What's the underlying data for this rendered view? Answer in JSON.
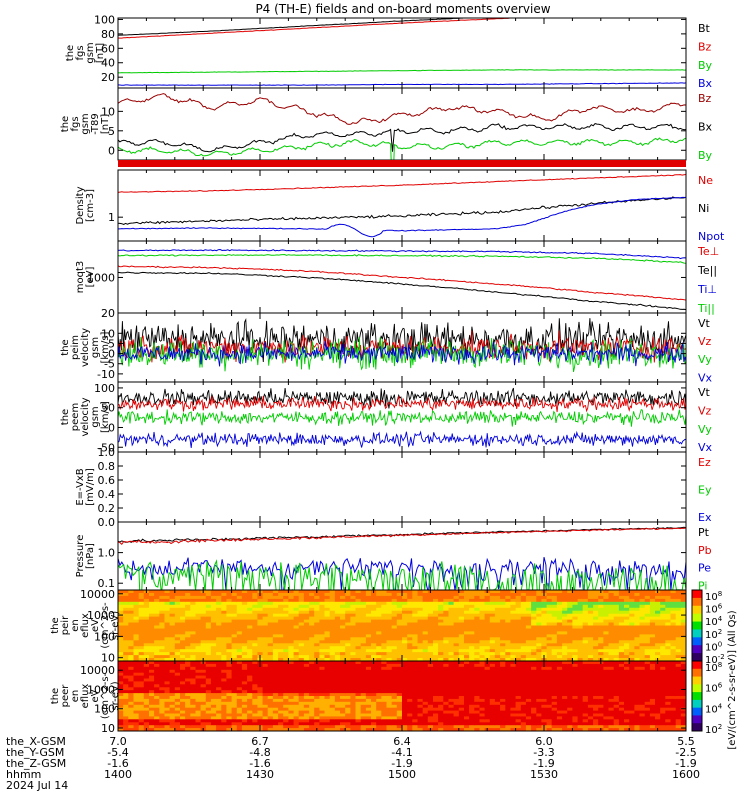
{
  "title": "P4 (TH-E) fields and on-board moments overview",
  "colors": {
    "black": "#000000",
    "red": "#e00000",
    "green": "#00cc00",
    "blue": "#0000dd",
    "darkred": "#990000"
  },
  "chart_data": [
    {
      "type": "line",
      "id": "fgs_gsm",
      "ylabel": [
        "the",
        "fgs",
        "gsm",
        "[nT]"
      ],
      "yticks": [
        "100",
        "80",
        "60",
        "40",
        "20"
      ],
      "ylim": [
        5,
        102
      ],
      "series": [
        {
          "name": "Bt",
          "color": "#000000",
          "x": [
            0,
            10,
            20,
            30,
            40,
            50,
            60
          ],
          "y": [
            78,
            84,
            91,
            98,
            104,
            110,
            116
          ]
        },
        {
          "name": "Bz",
          "color": "#e00000",
          "x": [
            0,
            10,
            20,
            30,
            40,
            50,
            60
          ],
          "y": [
            74,
            81,
            88,
            95,
            101,
            107,
            113
          ]
        },
        {
          "name": "By",
          "color": "#00cc00",
          "x": [
            0,
            10,
            20,
            30,
            40,
            50,
            60
          ],
          "y": [
            26,
            27,
            28,
            29,
            30,
            30,
            30
          ]
        },
        {
          "name": "Bx",
          "color": "#0000dd",
          "x": [
            0,
            10,
            20,
            30,
            40,
            50,
            60
          ],
          "y": [
            9,
            9,
            9,
            10,
            10,
            11,
            12
          ]
        }
      ]
    },
    {
      "type": "line",
      "id": "fgs_gsm_dt89",
      "ylabel": [
        "the",
        "fgs",
        "gsm",
        "-T89",
        "[nT]"
      ],
      "yticks": [
        "10",
        "5",
        "0"
      ],
      "ylim": [
        -2.5,
        16
      ],
      "series": [
        {
          "name": "Bz",
          "color": "#990000",
          "x": [
            0,
            5,
            10,
            15,
            20,
            25,
            30,
            35,
            40,
            45,
            50,
            55,
            60
          ],
          "y": [
            12,
            14,
            11,
            13,
            10,
            7,
            9,
            11,
            10,
            8,
            11,
            10,
            12
          ]
        },
        {
          "name": "Bx",
          "color": "#000000",
          "x": [
            0,
            5,
            10,
            15,
            20,
            25,
            30,
            35,
            40,
            45,
            50,
            55,
            60
          ],
          "y": [
            2,
            2,
            0,
            2,
            4,
            4,
            5,
            5,
            6,
            6,
            6,
            6,
            6
          ]
        },
        {
          "name": "By",
          "color": "#00cc00",
          "x": [
            0,
            5,
            10,
            15,
            20,
            25,
            30,
            35,
            40,
            45,
            50,
            55,
            60
          ],
          "y": [
            0,
            0,
            -1,
            0,
            1,
            2,
            1,
            1,
            2,
            2,
            2,
            2,
            3
          ]
        }
      ]
    },
    {
      "type": "line",
      "id": "density",
      "ylabel": [
        "Density",
        "[cm-3]"
      ],
      "yticks": [
        "1"
      ],
      "ylim": [
        0.35,
        8
      ],
      "log": true,
      "series": [
        {
          "name": "Ne",
          "color": "#e00000",
          "x": [
            0,
            10,
            20,
            30,
            40,
            50,
            60
          ],
          "y": [
            3.0,
            3.2,
            3.6,
            4.1,
            4.8,
            5.6,
            6.5
          ]
        },
        {
          "name": "Ni",
          "color": "#000000",
          "x": [
            0,
            10,
            20,
            30,
            40,
            50,
            60
          ],
          "y": [
            0.75,
            0.85,
            0.95,
            1.05,
            1.25,
            1.8,
            2.4
          ]
        },
        {
          "name": "Npot",
          "color": "#0000dd",
          "x": [
            0,
            10,
            20,
            30,
            40,
            43,
            45,
            50,
            55,
            60
          ],
          "y": [
            0.6,
            0.62,
            0.6,
            0.55,
            0.6,
            0.72,
            0.95,
            1.7,
            2.2,
            2.4
          ]
        }
      ]
    },
    {
      "type": "line",
      "id": "moms",
      "ylabel": [
        "moqt3",
        "[eV]"
      ],
      "yticks": [
        "1000"
      ],
      "ylim": [
        150,
        7000
      ],
      "log": true,
      "series": [
        {
          "name": "Te⊥",
          "color": "#e00000",
          "x": [
            0,
            10,
            20,
            30,
            40,
            50,
            60
          ],
          "y": [
            1800,
            1700,
            1400,
            1000,
            700,
            450,
            300
          ]
        },
        {
          "name": "Te||",
          "color": "#000000",
          "x": [
            0,
            10,
            20,
            30,
            40,
            50,
            60
          ],
          "y": [
            1300,
            1250,
            1000,
            700,
            450,
            280,
            180
          ]
        },
        {
          "name": "Ti⊥",
          "color": "#0000dd",
          "x": [
            0,
            10,
            20,
            30,
            40,
            50,
            60
          ],
          "y": [
            4200,
            4300,
            4200,
            4100,
            4000,
            3600,
            2800
          ]
        },
        {
          "name": "Ti||",
          "color": "#00cc00",
          "x": [
            0,
            10,
            20,
            30,
            40,
            50,
            60
          ],
          "y": [
            3200,
            3300,
            3300,
            3200,
            3100,
            2800,
            2200
          ]
        }
      ]
    },
    {
      "type": "line",
      "id": "peim_velocity",
      "ylabel": [
        "the",
        "peim",
        "velocity",
        "gsm",
        "[km/s]"
      ],
      "yticks": [
        "20",
        "10",
        "5",
        "0",
        "-5",
        "-10"
      ],
      "ylim": [
        -14,
        20
      ],
      "series": [
        {
          "name": "Vt",
          "color": "#000000",
          "x": [
            0,
            60
          ],
          "y": [
            7,
            7
          ]
        },
        {
          "name": "Vz",
          "color": "#e00000",
          "x": [
            0,
            60
          ],
          "y": [
            3,
            3
          ]
        },
        {
          "name": "Vy",
          "color": "#00cc00",
          "x": [
            0,
            60
          ],
          "y": [
            0,
            0
          ]
        },
        {
          "name": "Vx",
          "color": "#0000dd",
          "x": [
            0,
            60
          ],
          "y": [
            0,
            0
          ]
        }
      ]
    },
    {
      "type": "line",
      "id": "peem_velocity",
      "ylabel": [
        "the",
        "peem",
        "velocity",
        "gsm",
        "[km/s]"
      ],
      "yticks": [
        "100",
        "50",
        "0",
        "-50"
      ],
      "ylim": [
        -62,
        115
      ],
      "series": [
        {
          "name": "Vt",
          "color": "#000000",
          "x": [
            0,
            60
          ],
          "y": [
            75,
            75
          ]
        },
        {
          "name": "Vz",
          "color": "#e00000",
          "x": [
            0,
            60
          ],
          "y": [
            60,
            60
          ]
        },
        {
          "name": "Vy",
          "color": "#00cc00",
          "x": [
            0,
            60
          ],
          "y": [
            25,
            25
          ]
        },
        {
          "name": "Vx",
          "color": "#0000dd",
          "x": [
            0,
            60
          ],
          "y": [
            -30,
            -30
          ]
        }
      ]
    },
    {
      "type": "line",
      "id": "e_vxb",
      "ylabel": [
        "E=-VxB",
        "[mV/m]"
      ],
      "yticks": [
        "1.0",
        "0.8",
        "0.6",
        "0.4",
        "0.2",
        "0.0"
      ],
      "ylim": [
        0,
        1.0
      ],
      "series": [
        {
          "name": "Ez",
          "color": "#e00000",
          "x": [],
          "y": []
        },
        {
          "name": "Ey",
          "color": "#00cc00",
          "x": [],
          "y": []
        },
        {
          "name": "Ex",
          "color": "#0000dd",
          "x": [],
          "y": []
        }
      ]
    },
    {
      "type": "line",
      "id": "pressure",
      "ylabel": [
        "Pressure",
        "[nPa]"
      ],
      "yticks": [
        "1.0",
        "0.1"
      ],
      "ylim": [
        0.06,
        10
      ],
      "log": true,
      "series": [
        {
          "name": "Pt",
          "color": "#000000",
          "x": [
            0,
            10,
            20,
            30,
            40,
            50,
            60
          ],
          "y": [
            2.3,
            2.7,
            3.2,
            3.9,
            4.7,
            5.6,
            6.5
          ]
        },
        {
          "name": "Pb",
          "color": "#e00000",
          "x": [
            0,
            10,
            20,
            30,
            40,
            50,
            60
          ],
          "y": [
            2.1,
            2.5,
            3.0,
            3.7,
            4.5,
            5.4,
            6.3
          ]
        },
        {
          "name": "Pe",
          "color": "#0000dd",
          "x": [
            0,
            10,
            20,
            30,
            40,
            50,
            60
          ],
          "y": [
            0.32,
            0.33,
            0.33,
            0.33,
            0.33,
            0.32,
            0.3
          ]
        },
        {
          "name": "Pi",
          "color": "#00cc00",
          "x": [
            0,
            10,
            20,
            30,
            40,
            50,
            60
          ],
          "y": [
            0.22,
            0.2,
            0.17,
            0.12,
            0.08,
            0.06,
            0.055
          ]
        }
      ]
    },
    {
      "type": "heatmap",
      "id": "peir_eflux",
      "ylabel": [
        "the",
        "peir",
        "en",
        "eflux",
        "eV",
        "(cm^2-s-",
        "sr-eV)"
      ],
      "yticks": [
        "10000",
        "1000",
        "100",
        "10"
      ],
      "ylim": [
        7,
        15000
      ],
      "log": true,
      "colorbar": {
        "ticks": [
          "10^8",
          "10^6",
          "10^4",
          "10^2",
          "10^0",
          "10^-2"
        ]
      }
    },
    {
      "type": "heatmap",
      "id": "peer_eflux",
      "ylabel": [
        "the",
        "peer",
        "en",
        "eflux",
        "eV",
        "(cm^2-s-",
        "sr-eV)"
      ],
      "yticks": [
        "10000",
        "1000",
        "100",
        "10"
      ],
      "ylim": [
        7,
        30000
      ],
      "log": true,
      "colorbar": {
        "ticks": [
          "10^8",
          "10^6",
          "10^4",
          "10^2"
        ]
      }
    }
  ],
  "colorbar_label": "[eV/(cm^2-s-sr-eV)] (All Qs)",
  "colorbar_label2": "[eV/(cm^2-s-sr-eV)]",
  "x_axis": {
    "rows": [
      {
        "label": "the_X-GSM",
        "values": [
          "7.0",
          "6.7",
          "6.4",
          "6.0",
          "5.5"
        ]
      },
      {
        "label": "the_Y-GSM",
        "values": [
          "-5.4",
          "-4.8",
          "-4.1",
          "-3.3",
          "-2.5"
        ]
      },
      {
        "label": "the_Z-GSM",
        "values": [
          "-1.6",
          "-1.6",
          "-1.9",
          "-1.9",
          "-1.9"
        ]
      },
      {
        "label": "hhmm",
        "values": [
          "1400",
          "1430",
          "1500",
          "1530",
          "1600"
        ]
      }
    ],
    "date": "2024 Jul 14"
  }
}
